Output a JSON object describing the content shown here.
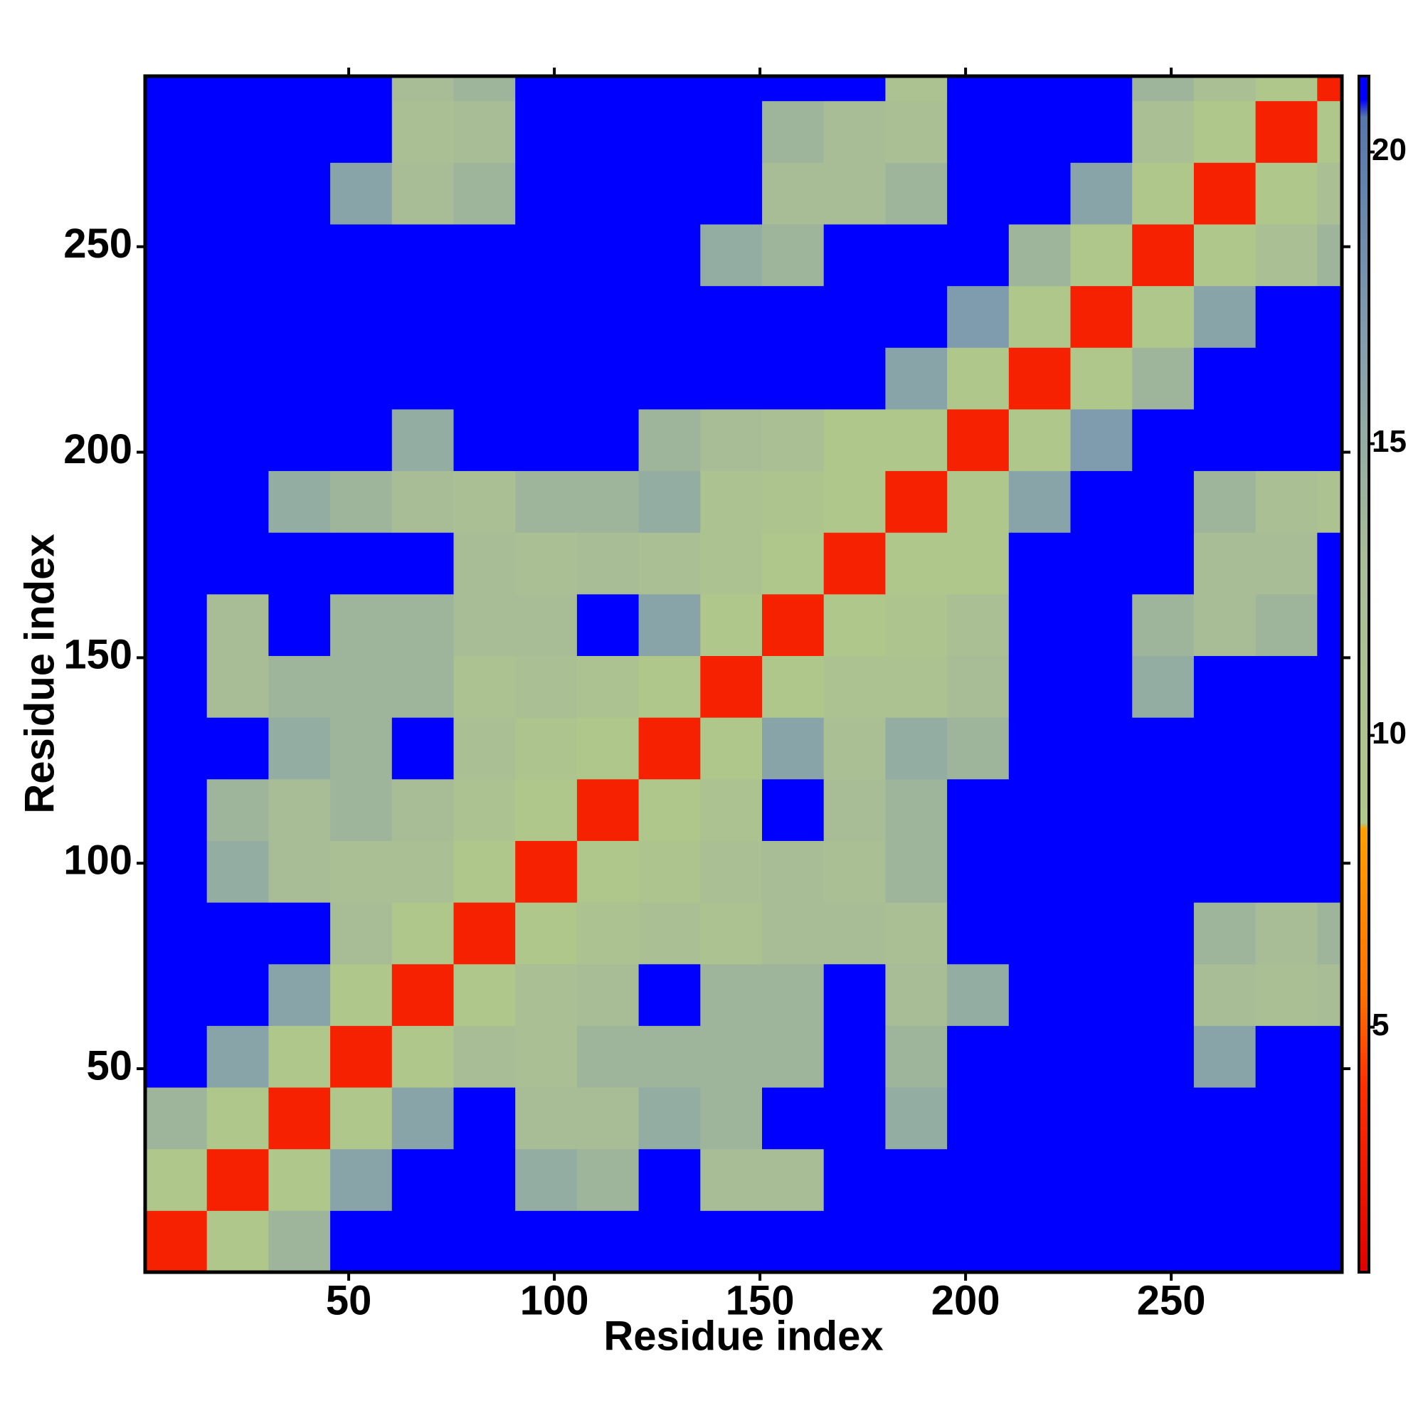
{
  "chart_data": {
    "type": "heatmap",
    "xlabel": "Residue index",
    "ylabel": "Residue index",
    "xlim": [
      0.5,
      291.5
    ],
    "ylim": [
      0.5,
      291.5
    ],
    "xticks": [
      50,
      100,
      150,
      200,
      250
    ],
    "yticks": [
      50,
      100,
      150,
      200,
      250
    ],
    "x_bins": [
      0.5,
      15.5,
      30.5,
      45.5,
      60.5,
      75.5,
      90.5,
      105.5,
      120.5,
      135.5,
      150.5,
      165.5,
      180.5,
      195.5,
      210.5,
      225.5,
      240.5,
      255.5,
      270.5,
      285.5,
      291.5
    ],
    "y_bins": [
      0.5,
      15.5,
      30.5,
      45.5,
      60.5,
      75.5,
      90.5,
      105.5,
      120.5,
      135.5,
      150.5,
      165.5,
      180.5,
      195.5,
      210.5,
      225.5,
      240.5,
      255.5,
      270.5,
      285.5,
      291.5
    ],
    "z": [
      [
        3,
        9,
        14,
        21,
        21,
        21,
        21,
        21,
        21,
        21,
        21,
        21,
        21,
        21,
        21,
        21,
        21,
        21,
        21,
        21
      ],
      [
        9,
        3,
        9,
        16,
        21,
        21,
        15,
        14,
        21,
        13,
        13,
        21,
        21,
        21,
        21,
        21,
        21,
        21,
        21,
        21
      ],
      [
        14,
        9,
        3,
        9,
        16,
        21,
        13,
        13,
        15,
        14,
        21,
        21,
        15,
        21,
        21,
        21,
        21,
        21,
        21,
        21
      ],
      [
        21,
        16,
        9,
        3,
        9,
        13,
        12,
        14,
        14,
        14,
        14,
        21,
        14,
        21,
        21,
        21,
        21,
        16,
        21,
        21
      ],
      [
        21,
        21,
        16,
        9,
        3,
        9,
        12,
        13,
        21,
        14,
        14,
        21,
        13,
        15,
        21,
        21,
        21,
        13,
        12,
        13
      ],
      [
        21,
        21,
        21,
        13,
        9,
        3,
        9,
        11,
        12,
        11,
        13,
        13,
        12,
        21,
        21,
        21,
        21,
        14,
        13,
        14
      ],
      [
        21,
        15,
        13,
        12,
        12,
        9,
        3,
        9,
        10,
        12,
        13,
        12,
        14,
        21,
        21,
        21,
        21,
        21,
        21,
        21
      ],
      [
        21,
        14,
        13,
        14,
        13,
        11,
        9,
        3,
        9,
        11,
        21,
        13,
        14,
        21,
        21,
        21,
        21,
        21,
        21,
        21
      ],
      [
        21,
        21,
        15,
        14,
        21,
        12,
        10,
        9,
        3,
        9,
        16,
        12,
        15,
        14,
        21,
        21,
        21,
        21,
        21,
        21
      ],
      [
        21,
        13,
        14,
        14,
        14,
        11,
        12,
        11,
        9,
        3,
        9,
        11,
        11,
        13,
        21,
        21,
        15,
        21,
        21,
        21
      ],
      [
        21,
        13,
        21,
        14,
        14,
        13,
        13,
        21,
        16,
        9,
        3,
        9,
        10,
        12,
        21,
        21,
        14,
        13,
        14,
        21
      ],
      [
        21,
        21,
        21,
        21,
        21,
        13,
        12,
        13,
        12,
        11,
        9,
        3,
        9,
        9,
        21,
        21,
        21,
        13,
        13,
        21
      ],
      [
        21,
        21,
        15,
        14,
        13,
        12,
        14,
        14,
        15,
        11,
        10,
        9,
        3,
        9,
        16,
        21,
        21,
        14,
        12,
        11
      ],
      [
        21,
        21,
        21,
        21,
        15,
        21,
        21,
        21,
        14,
        13,
        12,
        9,
        9,
        3,
        9,
        17,
        21,
        21,
        21,
        21
      ],
      [
        21,
        21,
        21,
        21,
        21,
        21,
        21,
        21,
        21,
        21,
        21,
        21,
        16,
        9,
        3,
        9,
        14,
        21,
        21,
        21
      ],
      [
        21,
        21,
        21,
        21,
        21,
        21,
        21,
        21,
        21,
        21,
        21,
        21,
        21,
        17,
        9,
        3,
        9,
        16,
        21,
        21
      ],
      [
        21,
        21,
        21,
        21,
        21,
        21,
        21,
        21,
        21,
        15,
        14,
        21,
        21,
        21,
        14,
        9,
        3,
        9,
        12,
        14
      ],
      [
        21,
        21,
        21,
        16,
        13,
        14,
        21,
        21,
        21,
        21,
        13,
        13,
        14,
        21,
        21,
        16,
        9,
        3,
        9,
        12
      ],
      [
        21,
        21,
        21,
        21,
        12,
        13,
        21,
        21,
        21,
        21,
        14,
        13,
        12,
        21,
        21,
        21,
        12,
        9,
        3,
        9
      ],
      [
        21,
        21,
        21,
        21,
        13,
        14,
        21,
        21,
        21,
        21,
        21,
        21,
        11,
        21,
        21,
        21,
        14,
        12,
        9,
        3
      ]
    ],
    "zlim": [
      0.8,
      21.3
    ],
    "zticks": [
      5,
      10,
      15,
      20
    ],
    "colorscale": [
      [
        0.8,
        "#e00000"
      ],
      [
        4,
        "#ff3000"
      ],
      [
        5.5,
        "#ff7000"
      ],
      [
        8.4,
        "#ffa000"
      ],
      [
        8.5,
        "#b0c88a"
      ],
      [
        13,
        "#a8bd96"
      ],
      [
        17,
        "#7f9cae"
      ],
      [
        20.6,
        "#5577aa"
      ],
      [
        20.9,
        "#0000ff"
      ],
      [
        21.3,
        "#0000ff"
      ]
    ]
  }
}
